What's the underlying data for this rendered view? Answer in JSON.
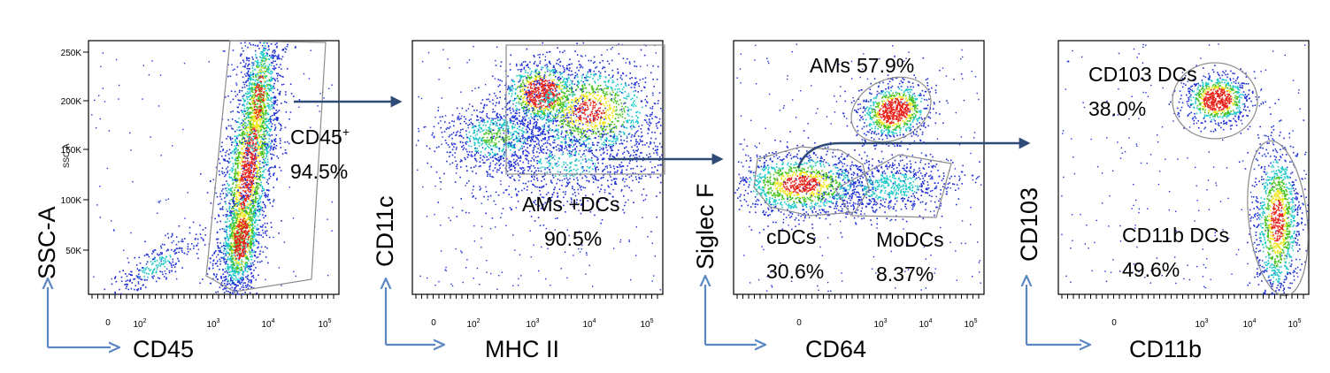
{
  "chart_data": [
    {
      "type": "scatter",
      "panel": 1,
      "xlabel": "CD45",
      "ylabel": "SSC-A",
      "ylabel_small": "SSC-A",
      "x_tick_labels": [
        "0",
        "10^2",
        "10^3",
        "10^4",
        "10^5"
      ],
      "y_tick_labels": [
        "50K",
        "100K",
        "150K",
        "200K",
        "250K"
      ],
      "gates": [
        {
          "label": "CD45⁺",
          "percent": "94.5%"
        }
      ]
    },
    {
      "type": "scatter",
      "panel": 2,
      "xlabel": "MHC II",
      "ylabel": "CD11c",
      "x_tick_labels": [
        "0",
        "10^2",
        "10^3",
        "10^4",
        "10^5"
      ],
      "gates": [
        {
          "label": "AMs +DCs",
          "percent": "90.5%"
        }
      ]
    },
    {
      "type": "scatter",
      "panel": 3,
      "xlabel": "CD64",
      "ylabel": "Siglec F",
      "x_tick_labels": [
        "0",
        "10^3",
        "10^4",
        "10^5"
      ],
      "gates": [
        {
          "label": "AMs",
          "percent": "57.9%"
        },
        {
          "label": "cDCs",
          "percent": "30.6%"
        },
        {
          "label": "MoDCs",
          "percent": "8.37%"
        }
      ]
    },
    {
      "type": "scatter",
      "panel": 4,
      "xlabel": "CD11b",
      "ylabel": "CD103",
      "x_tick_labels": [
        "0",
        "10^3",
        "10^4",
        "10^5"
      ],
      "gates": [
        {
          "label": "CD103 DCs",
          "percent": "38.0%"
        },
        {
          "label": "CD11b DCs",
          "percent": "49.6%"
        }
      ]
    }
  ],
  "colors": {
    "density_low": "#1f2fd6",
    "density_mid": "#19c8c8",
    "density_midhigh": "#45c21c",
    "density_high": "#f0e61e",
    "density_peak": "#e8241b",
    "gate_line": "#8c8c8c",
    "flow_arrow": "#2e4a76",
    "corner_arrow": "#5b87c3"
  }
}
